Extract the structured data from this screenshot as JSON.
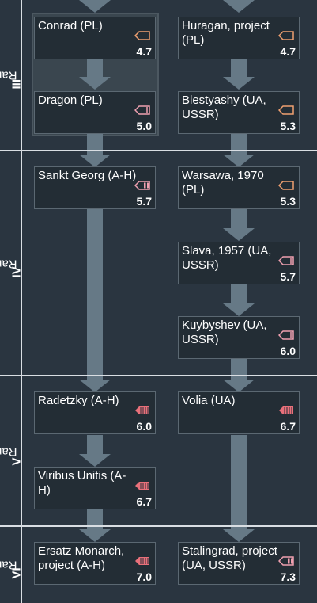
{
  "ranks": [
    {
      "label": "Rank",
      "numeral": "III"
    },
    {
      "label": "Rank",
      "numeral": "IV"
    },
    {
      "label": "Rank",
      "numeral": "V"
    },
    {
      "label": "Rank",
      "numeral": "VI"
    }
  ],
  "vehicles": [
    {
      "name": "Conrad (PL)",
      "br": "4.7",
      "icon": "battlecruiser-icon"
    },
    {
      "name": "Huragan, project (PL)",
      "br": "4.7",
      "icon": "battlecruiser-icon"
    },
    {
      "name": "Dragon (PL)",
      "br": "5.0",
      "icon": "light-cruiser-icon"
    },
    {
      "name": "Blestyashy (UA, USSR)",
      "br": "5.3",
      "icon": "battlecruiser-icon"
    },
    {
      "name": "Sankt Georg (A-H)",
      "br": "5.7",
      "icon": "heavy-cruiser-icon"
    },
    {
      "name": "Warsawa, 1970 (PL)",
      "br": "5.3",
      "icon": "battlecruiser-icon"
    },
    {
      "name": "Slava, 1957 (UA, USSR)",
      "br": "5.7",
      "icon": "light-cruiser-icon"
    },
    {
      "name": "Kuybyshev (UA, USSR)",
      "br": "6.0",
      "icon": "light-cruiser-icon"
    },
    {
      "name": "Radetzky (A-H)",
      "br": "6.0",
      "icon": "battleship-icon"
    },
    {
      "name": "Volia (UA)",
      "br": "6.7",
      "icon": "battleship-icon"
    },
    {
      "name": "Viribus Unitis (A-H)",
      "br": "6.7",
      "icon": "battleship-icon"
    },
    {
      "name": "Ersatz Monarch, project (A-H)",
      "br": "7.0",
      "icon": "battleship-icon"
    },
    {
      "name": "Stalingrad, project (UA, USSR)",
      "br": "7.3",
      "icon": "heavy-cruiser-icon"
    }
  ],
  "colors": {
    "background": "#2a3540",
    "card_bg": "#232d35",
    "connector": "#667986",
    "icon_orange": "#f0a070",
    "icon_pink": "#f0a0b0",
    "icon_red": "#e8707a"
  }
}
